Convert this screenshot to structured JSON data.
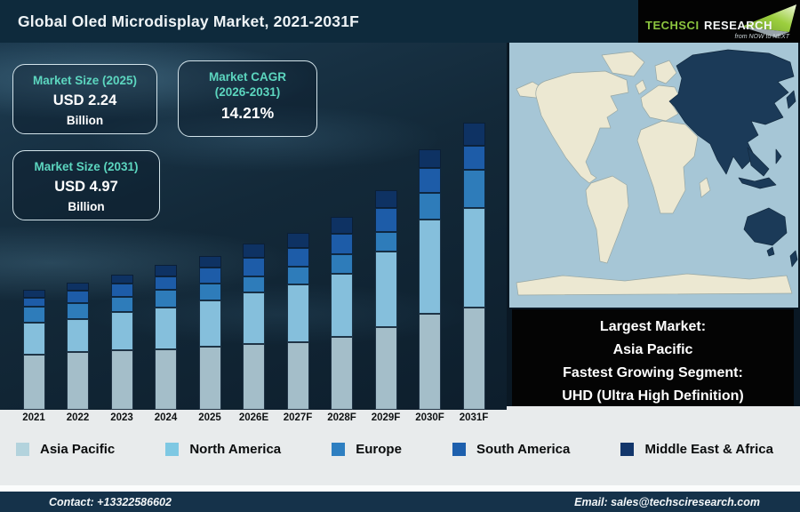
{
  "header": {
    "title": "Global Oled Microdisplay Market, 2021-2031F",
    "logo": {
      "brand_primary": "TechSci",
      "brand_secondary": "Research",
      "tagline": "from NOW to NEXT",
      "brand_green": "#8cc63f"
    }
  },
  "callouts": [
    {
      "label": "Market Size (2025)",
      "value": "USD 2.24",
      "unit": "Billion"
    },
    {
      "label": "Market CAGR",
      "label2": "(2026-2031)",
      "value": "14.21%"
    },
    {
      "label": "Market Size (2031)",
      "value": "USD 4.97",
      "unit": "Billion"
    }
  ],
  "chart_data": {
    "type": "bar",
    "stacked": true,
    "title": "Global Oled Microdisplay Market, 2021-2031F",
    "categories": [
      "2021",
      "2022",
      "2023",
      "2024",
      "2025",
      "2026E",
      "2027F",
      "2028F",
      "2029F",
      "2030F",
      "2031F"
    ],
    "series": [
      {
        "name": "Asia Pacific",
        "color": "#a4bec9",
        "legend_color": "#b3d3dd",
        "values": [
          62,
          65,
          67,
          68,
          71,
          74,
          76,
          82,
          93,
          108,
          115
        ]
      },
      {
        "name": "North America",
        "color": "#85bfdc",
        "legend_color": "#7ec8e3",
        "values": [
          36,
          37,
          43,
          47,
          52,
          58,
          65,
          71,
          85,
          106,
          112
        ]
      },
      {
        "name": "Europe",
        "color": "#2e7cba",
        "legend_color": "#2e7fc1",
        "values": [
          18,
          18,
          17,
          20,
          19,
          18,
          20,
          22,
          22,
          30,
          43
        ]
      },
      {
        "name": "South America",
        "color": "#1d5ca8",
        "legend_color": "#1d5fad",
        "values": [
          10,
          14,
          15,
          15,
          18,
          21,
          21,
          23,
          27,
          28,
          27
        ]
      },
      {
        "name": "Middle East & Africa",
        "color": "#0e3263",
        "legend_color": "#12366b",
        "values": [
          9,
          9,
          10,
          13,
          13,
          16,
          17,
          19,
          20,
          21,
          26
        ]
      }
    ],
    "units_note": "no value axis shown; series values are relative bar-segment heights (px)",
    "xlabel": "",
    "ylabel": "",
    "grid": false,
    "legend_position": "bottom"
  },
  "map": {
    "highlight_region": "Asia Pacific",
    "ocean_color": "#a6c6d6",
    "land_color": "#ece8d2",
    "highlight_color": "#1b3a58"
  },
  "highlight_box": {
    "lines": [
      "Largest Market:",
      "Asia Pacific",
      "Fastest Growing Segment:",
      "UHD (Ultra High Definition)"
    ]
  },
  "footer": {
    "contact": "Contact: +13322586602",
    "email": "Email: sales@techsciresearch.com"
  }
}
